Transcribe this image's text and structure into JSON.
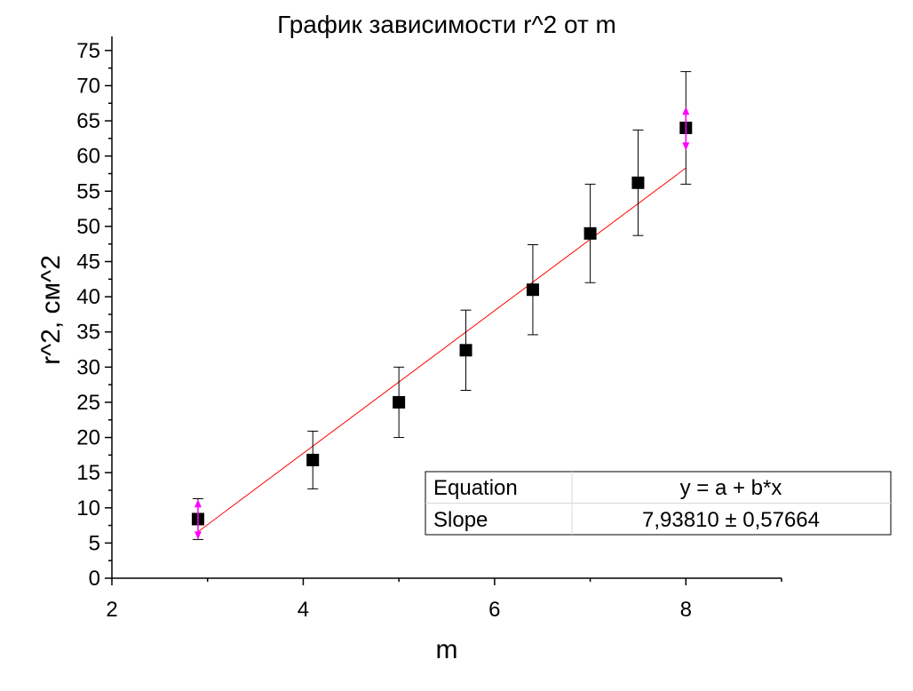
{
  "chart_data": {
    "type": "scatter",
    "title": "График зависимости r^2 от m",
    "xlabel": "m",
    "ylabel": "r^2, см^2",
    "xlim": [
      2,
      9
    ],
    "ylim": [
      0,
      77
    ],
    "x_ticks": [
      "2",
      "4",
      "6",
      "8"
    ],
    "y_ticks": [
      "0",
      "5",
      "10",
      "15",
      "20",
      "25",
      "30",
      "35",
      "40",
      "45",
      "50",
      "55",
      "60",
      "65",
      "70",
      "75"
    ],
    "grid": false,
    "series": [
      {
        "points": [
          {
            "x": 2.9,
            "y": 8.4,
            "yerr": 2.9
          },
          {
            "x": 4.1,
            "y": 16.8,
            "yerr": 4.1
          },
          {
            "x": 5.0,
            "y": 25.0,
            "yerr": 5.0
          },
          {
            "x": 5.7,
            "y": 32.4,
            "yerr": 5.7
          },
          {
            "x": 6.4,
            "y": 41.0,
            "yerr": 6.4
          },
          {
            "x": 7.0,
            "y": 49.0,
            "yerr": 7.0
          },
          {
            "x": 7.5,
            "y": 56.2,
            "yerr": 7.5
          },
          {
            "x": 8.0,
            "y": 64.0,
            "yerr": 8.0
          }
        ],
        "color": "#000000"
      },
      {
        "type": "line",
        "points": [
          {
            "x": 2.9,
            "y": 6.6
          },
          {
            "x": 8.0,
            "y": 58.3
          }
        ],
        "color": "#ff0000"
      }
    ],
    "highlight_arrows": {
      "color": "#ff00ff",
      "points": [
        {
          "x": 2.9,
          "y_top": 11.2,
          "y_bottom": 5.5
        },
        {
          "x": 8.0,
          "y_top": 67.0,
          "y_bottom": 60.8
        }
      ]
    },
    "fit_table": {
      "rows": [
        {
          "label": "Equation",
          "value": "y = a + b*x"
        },
        {
          "label": "Slope",
          "value": "7,93810 ± 0,57664"
        }
      ]
    }
  }
}
